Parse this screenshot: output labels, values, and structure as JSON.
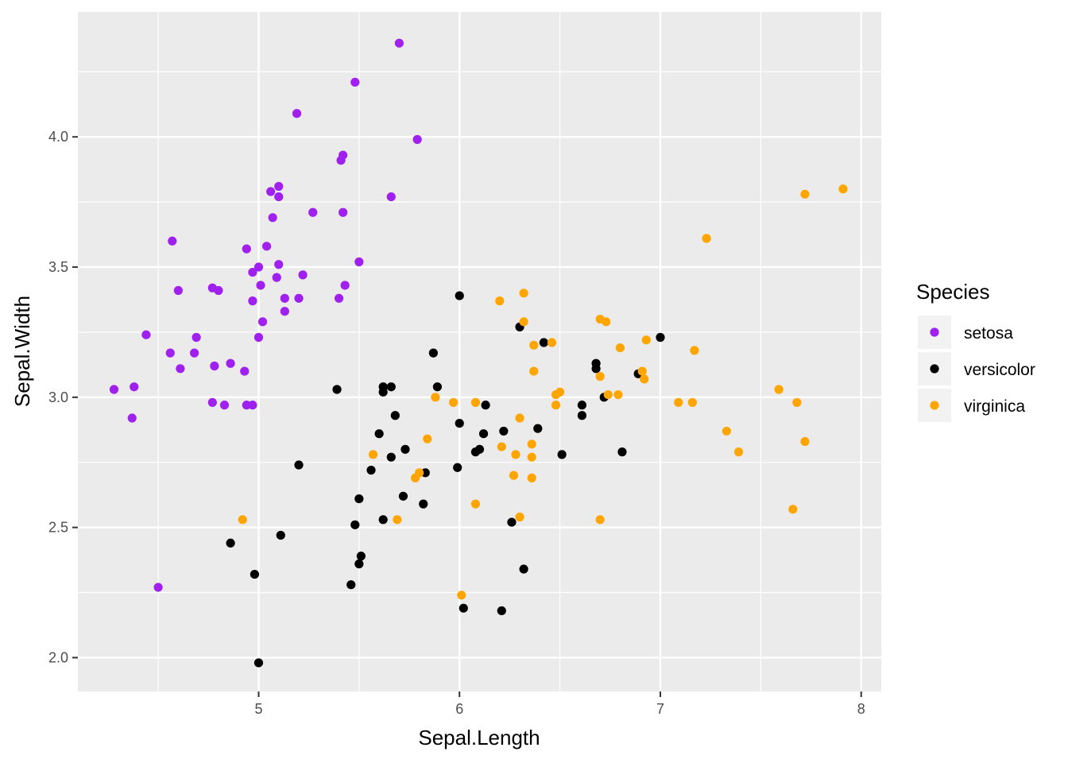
{
  "chart_data": {
    "type": "scatter",
    "xlabel": "Sepal.Length",
    "ylabel": "Sepal.Width",
    "xlim": [
      4.1,
      8.1
    ],
    "ylim": [
      1.87,
      4.48
    ],
    "x_ticks": [
      5,
      6,
      7,
      8
    ],
    "y_ticks": [
      2.0,
      2.5,
      3.0,
      3.5,
      4.0
    ],
    "x_tick_labels": [
      "5",
      "6",
      "7",
      "8"
    ],
    "y_tick_labels": [
      "2.0",
      "2.5",
      "3.0",
      "3.5",
      "4.0"
    ],
    "grid": true,
    "legend": {
      "title": "Species",
      "position": "right",
      "entries": [
        "setosa",
        "versicolor",
        "virginica"
      ]
    },
    "colors": {
      "setosa": "#a020f0",
      "versicolor": "#000000",
      "virginica": "#ffa500",
      "panel": "#ebebeb",
      "grid": "#ffffff"
    },
    "series": [
      {
        "name": "setosa",
        "color": "#a020f0",
        "points": [
          [
            5.7,
            4.36
          ],
          [
            5.48,
            4.21
          ],
          [
            5.19,
            4.09
          ],
          [
            5.79,
            3.99
          ],
          [
            5.42,
            3.93
          ],
          [
            5.41,
            3.91
          ],
          [
            5.1,
            3.81
          ],
          [
            5.06,
            3.79
          ],
          [
            5.1,
            3.77
          ],
          [
            5.66,
            3.77
          ],
          [
            5.27,
            3.71
          ],
          [
            5.42,
            3.71
          ],
          [
            5.07,
            3.69
          ],
          [
            4.57,
            3.6
          ],
          [
            5.04,
            3.58
          ],
          [
            4.94,
            3.57
          ],
          [
            5.5,
            3.52
          ],
          [
            5.1,
            3.51
          ],
          [
            5.0,
            3.5
          ],
          [
            4.97,
            3.48
          ],
          [
            5.22,
            3.47
          ],
          [
            5.09,
            3.46
          ],
          [
            5.01,
            3.43
          ],
          [
            5.43,
            3.43
          ],
          [
            4.77,
            3.42
          ],
          [
            4.6,
            3.41
          ],
          [
            4.8,
            3.41
          ],
          [
            5.13,
            3.38
          ],
          [
            5.2,
            3.38
          ],
          [
            5.4,
            3.38
          ],
          [
            4.97,
            3.37
          ],
          [
            5.13,
            3.33
          ],
          [
            5.02,
            3.29
          ],
          [
            4.44,
            3.24
          ],
          [
            4.69,
            3.23
          ],
          [
            5.0,
            3.23
          ],
          [
            4.56,
            3.17
          ],
          [
            4.68,
            3.17
          ],
          [
            4.86,
            3.13
          ],
          [
            4.78,
            3.12
          ],
          [
            4.61,
            3.11
          ],
          [
            4.93,
            3.1
          ],
          [
            4.38,
            3.04
          ],
          [
            4.28,
            3.03
          ],
          [
            4.77,
            2.98
          ],
          [
            4.83,
            2.97
          ],
          [
            4.94,
            2.97
          ],
          [
            4.97,
            2.97
          ],
          [
            4.37,
            2.92
          ],
          [
            4.5,
            2.27
          ]
        ]
      },
      {
        "name": "versicolor",
        "color": "#000000",
        "points": [
          [
            6.0,
            3.39
          ],
          [
            6.3,
            3.27
          ],
          [
            6.42,
            3.21
          ],
          [
            7.0,
            3.23
          ],
          [
            5.87,
            3.17
          ],
          [
            6.68,
            3.13
          ],
          [
            6.68,
            3.11
          ],
          [
            6.89,
            3.09
          ],
          [
            5.62,
            3.04
          ],
          [
            5.66,
            3.04
          ],
          [
            5.89,
            3.04
          ],
          [
            5.62,
            3.02
          ],
          [
            5.39,
            3.03
          ],
          [
            6.72,
            3.0
          ],
          [
            6.13,
            2.97
          ],
          [
            6.61,
            2.97
          ],
          [
            5.68,
            2.93
          ],
          [
            6.61,
            2.93
          ],
          [
            6.0,
            2.9
          ],
          [
            6.39,
            2.88
          ],
          [
            6.22,
            2.87
          ],
          [
            5.6,
            2.86
          ],
          [
            6.12,
            2.86
          ],
          [
            5.73,
            2.8
          ],
          [
            6.1,
            2.8
          ],
          [
            6.08,
            2.79
          ],
          [
            6.81,
            2.79
          ],
          [
            6.51,
            2.78
          ],
          [
            5.66,
            2.77
          ],
          [
            5.2,
            2.74
          ],
          [
            5.99,
            2.73
          ],
          [
            5.56,
            2.72
          ],
          [
            5.83,
            2.71
          ],
          [
            5.72,
            2.62
          ],
          [
            5.5,
            2.61
          ],
          [
            5.82,
            2.59
          ],
          [
            5.62,
            2.53
          ],
          [
            6.26,
            2.52
          ],
          [
            5.48,
            2.51
          ],
          [
            5.11,
            2.47
          ],
          [
            4.86,
            2.44
          ],
          [
            5.51,
            2.39
          ],
          [
            5.5,
            2.36
          ],
          [
            6.32,
            2.34
          ],
          [
            4.98,
            2.32
          ],
          [
            5.46,
            2.28
          ],
          [
            6.02,
            2.19
          ],
          [
            6.21,
            2.18
          ],
          [
            5.0,
            1.98
          ]
        ]
      },
      {
        "name": "virginica",
        "color": "#ffa500",
        "points": [
          [
            7.91,
            3.8
          ],
          [
            7.72,
            3.78
          ],
          [
            7.23,
            3.61
          ],
          [
            6.32,
            3.4
          ],
          [
            6.2,
            3.37
          ],
          [
            6.7,
            3.3
          ],
          [
            6.73,
            3.29
          ],
          [
            6.32,
            3.29
          ],
          [
            6.93,
            3.22
          ],
          [
            6.46,
            3.21
          ],
          [
            6.37,
            3.2
          ],
          [
            6.8,
            3.19
          ],
          [
            7.17,
            3.18
          ],
          [
            6.37,
            3.1
          ],
          [
            6.91,
            3.1
          ],
          [
            6.7,
            3.08
          ],
          [
            6.92,
            3.07
          ],
          [
            7.59,
            3.03
          ],
          [
            6.5,
            3.02
          ],
          [
            6.74,
            3.01
          ],
          [
            6.79,
            3.01
          ],
          [
            6.48,
            3.01
          ],
          [
            5.88,
            3.0
          ],
          [
            5.97,
            2.98
          ],
          [
            6.08,
            2.98
          ],
          [
            7.09,
            2.98
          ],
          [
            7.16,
            2.98
          ],
          [
            7.68,
            2.98
          ],
          [
            6.48,
            2.97
          ],
          [
            6.3,
            2.92
          ],
          [
            7.33,
            2.87
          ],
          [
            5.84,
            2.84
          ],
          [
            6.36,
            2.82
          ],
          [
            7.72,
            2.83
          ],
          [
            6.21,
            2.81
          ],
          [
            7.39,
            2.79
          ],
          [
            6.28,
            2.78
          ],
          [
            6.36,
            2.77
          ],
          [
            5.57,
            2.78
          ],
          [
            5.8,
            2.71
          ],
          [
            5.78,
            2.69
          ],
          [
            6.27,
            2.7
          ],
          [
            6.36,
            2.69
          ],
          [
            6.08,
            2.59
          ],
          [
            7.66,
            2.57
          ],
          [
            4.92,
            2.53
          ],
          [
            5.69,
            2.53
          ],
          [
            6.3,
            2.54
          ],
          [
            6.7,
            2.53
          ],
          [
            6.01,
            2.24
          ]
        ]
      }
    ]
  }
}
